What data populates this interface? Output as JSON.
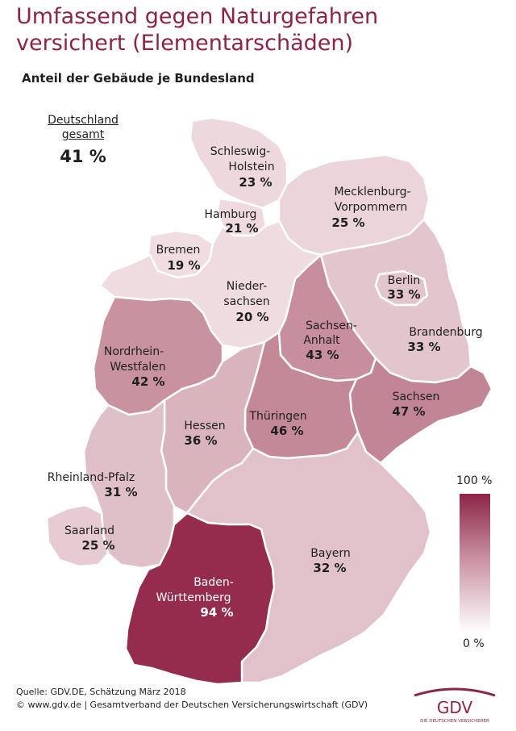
{
  "title_line1": "Umfassend gegen Naturgefahren",
  "title_line2": "versichert (Elementarschäden)",
  "subtitle": "Anteil der Gebäude je Bundesland",
  "national": {
    "label_line1": "Deutschland",
    "label_line2": "gesamt",
    "value": "41 %"
  },
  "states": {
    "sh": {
      "name1": "Schleswig-",
      "name2": "Holstein",
      "value": "23 %",
      "fill": "#edd9dd"
    },
    "hh": {
      "name1": "Hamburg",
      "value": "21 %",
      "fill": "#eedadf"
    },
    "mv": {
      "name1": "Mecklenburg-",
      "name2": "Vorpommern",
      "value": "25 %",
      "fill": "#ebd5da"
    },
    "hb": {
      "name1": "Bremen",
      "value": "19 %",
      "fill": "#f0dde1"
    },
    "ni": {
      "name1": "Nieder-",
      "name2": "sachsen",
      "value": "20 %",
      "fill": "#efdce0"
    },
    "be": {
      "name1": "Berlin",
      "value": "33 %",
      "fill": "#e3c6cd"
    },
    "bb": {
      "name1": "Brandenburg",
      "value": "33 %",
      "fill": "#e3c6cd"
    },
    "st": {
      "name1": "Sachsen-",
      "name2": "Anhalt",
      "value": "43 %",
      "fill": "#c78e9d"
    },
    "nw": {
      "name1": "Nordrhein-",
      "name2": "Westfalen",
      "value": "42 %",
      "fill": "#c9929f"
    },
    "sn": {
      "name1": "Sachsen",
      "value": "47 %",
      "fill": "#c28595"
    },
    "th": {
      "name1": "Thüringen",
      "value": "46 %",
      "fill": "#c48997"
    },
    "he": {
      "name1": "Hessen",
      "value": "36 %",
      "fill": "#d9b4bd"
    },
    "rp": {
      "name1": "Rheinland-Pfalz",
      "value": "31 %",
      "fill": "#e0c0c8"
    },
    "sl": {
      "name1": "Saarland",
      "value": "25 %",
      "fill": "#e6ccd2"
    },
    "by": {
      "name1": "Bayern",
      "value": "32 %",
      "fill": "#e1c2ca"
    },
    "bw": {
      "name1": "Baden-",
      "name2": "Württemberg",
      "value": "94 %",
      "fill": "#952b4d"
    }
  },
  "legend": {
    "max_label": "100 %",
    "min_label": "0 %",
    "max_color": "#8d2446",
    "min_color": "#ffffff"
  },
  "source_line1": "Quelle: GDV.DE, Schätzung März 2018",
  "source_line2": "© www.gdv.de | Gesamtverband der Deutschen Versicherungswirtschaft (GDV)",
  "logo": {
    "text": "GDV",
    "tagline": "DIE DEUTSCHEN VERSICHERER",
    "color": "#8d2446"
  }
}
